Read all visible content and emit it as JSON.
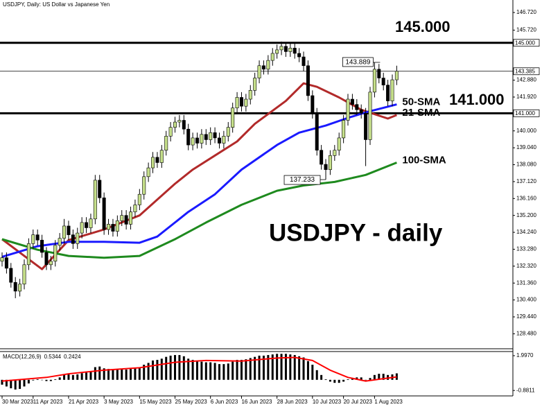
{
  "chart_data": [
    {
      "type": "candlestick",
      "title": "USDJPY, Daily: US Dollar vs Japanese Yen",
      "up_color": "#c5df8a",
      "down_color": "#000000",
      "open": [
        132.6,
        132.8,
        132.2,
        131.4,
        130.9,
        131.3,
        132.4,
        133.6,
        134.1,
        133.8,
        133.1,
        132.4,
        132.6,
        133.5,
        133.9,
        134.6,
        134.1,
        133.6,
        134.2,
        134.8,
        134.5,
        135.0,
        137.2,
        136.2,
        134.4,
        134.7,
        134.3,
        134.9,
        135.2,
        134.7,
        135.4,
        135.8,
        136.4,
        137.4,
        137.9,
        138.5,
        138.2,
        138.9,
        139.7,
        140.2,
        140.5,
        140.6,
        140.1,
        139.2,
        139.6,
        139.3,
        139.8,
        139.5,
        139.9,
        139.6,
        139.3,
        139.7,
        140.2,
        141.3,
        141.9,
        141.4,
        141.8,
        142.3,
        143.0,
        143.7,
        143.5,
        144.0,
        144.4,
        144.6,
        144.8,
        144.5,
        144.7,
        144.4,
        144.2,
        143.7,
        142.0,
        141.0,
        138.9,
        138.1,
        137.8,
        138.6,
        138.9,
        139.6,
        140.6,
        141.8,
        141.5,
        141.2,
        141.0,
        139.5,
        142.2,
        143.5,
        143.0,
        142.6,
        141.7,
        142.9
      ],
      "high": [
        133.1,
        133.1,
        132.5,
        131.7,
        131.6,
        132.7,
        133.9,
        134.4,
        134.4,
        134.1,
        133.4,
        132.9,
        133.8,
        134.2,
        135.0,
        134.9,
        134.4,
        134.5,
        135.1,
        135.1,
        135.3,
        137.5,
        137.5,
        136.5,
        135.0,
        135.0,
        135.2,
        135.5,
        135.5,
        135.7,
        136.1,
        136.7,
        137.7,
        138.2,
        138.8,
        138.8,
        139.2,
        140.0,
        140.5,
        140.8,
        140.9,
        140.9,
        140.4,
        139.9,
        139.9,
        140.1,
        140.1,
        140.2,
        140.2,
        139.9,
        140.0,
        140.5,
        141.6,
        142.2,
        142.2,
        142.1,
        142.6,
        143.3,
        144.0,
        144.0,
        144.3,
        144.7,
        144.9,
        145.07,
        145.0,
        145.0,
        145.0,
        144.7,
        144.5,
        144.0,
        142.3,
        141.3,
        139.2,
        138.4,
        138.9,
        139.2,
        139.9,
        140.9,
        142.1,
        142.1,
        141.8,
        141.5,
        141.3,
        142.5,
        143.889,
        143.8,
        143.3,
        142.9,
        143.2,
        143.7
      ],
      "low": [
        132.3,
        131.9,
        131.1,
        130.5,
        130.6,
        131.0,
        132.1,
        133.3,
        133.5,
        132.8,
        132.1,
        132.1,
        132.3,
        133.2,
        133.6,
        133.8,
        133.3,
        133.3,
        133.9,
        134.2,
        134.2,
        134.7,
        135.9,
        134.1,
        134.1,
        134.0,
        134.0,
        134.6,
        134.4,
        134.4,
        135.1,
        135.5,
        136.1,
        137.1,
        137.6,
        137.9,
        137.9,
        138.6,
        139.4,
        139.9,
        140.2,
        139.8,
        138.9,
        138.9,
        139.0,
        139.0,
        139.2,
        139.2,
        139.3,
        139.0,
        139.0,
        139.4,
        139.9,
        141.0,
        141.1,
        141.1,
        141.5,
        142.0,
        142.7,
        143.2,
        143.2,
        143.7,
        144.1,
        144.3,
        144.2,
        144.2,
        144.1,
        143.9,
        143.4,
        141.7,
        140.7,
        138.6,
        137.8,
        137.233,
        137.5,
        138.3,
        138.6,
        139.3,
        140.3,
        141.2,
        140.9,
        140.7,
        138.0,
        139.2,
        141.9,
        142.7,
        142.3,
        141.4,
        141.4,
        142.6
      ],
      "close": [
        132.8,
        132.2,
        131.4,
        130.9,
        131.3,
        132.4,
        133.6,
        134.1,
        133.8,
        133.1,
        132.4,
        132.6,
        133.5,
        133.9,
        134.6,
        134.1,
        133.6,
        134.2,
        134.8,
        134.5,
        135.0,
        137.2,
        136.2,
        134.4,
        134.7,
        134.3,
        134.9,
        135.2,
        134.7,
        135.4,
        135.8,
        136.4,
        137.4,
        137.9,
        138.5,
        138.2,
        138.9,
        139.7,
        140.2,
        140.5,
        140.6,
        140.1,
        139.2,
        139.6,
        139.3,
        139.8,
        139.5,
        139.9,
        139.6,
        139.3,
        139.7,
        140.2,
        141.3,
        141.9,
        141.4,
        141.8,
        142.3,
        143.0,
        143.7,
        143.5,
        144.0,
        144.4,
        144.6,
        144.8,
        144.5,
        144.7,
        144.4,
        144.2,
        143.7,
        142.0,
        141.0,
        138.9,
        138.1,
        137.8,
        138.6,
        138.9,
        139.6,
        140.6,
        141.8,
        141.5,
        141.2,
        141.0,
        139.5,
        142.2,
        143.5,
        143.0,
        142.6,
        141.7,
        142.9,
        143.385
      ],
      "xlim": [
        -0.47,
        115.2
      ],
      "xticks": [
        {
          "value": 0,
          "label": "30 Mar 2023"
        },
        {
          "value": 7,
          "label": "11 Apr 2023"
        },
        {
          "value": 15,
          "label": "21 Apr 2023"
        },
        {
          "value": 23,
          "label": "3 May 2023"
        },
        {
          "value": 31,
          "label": "15 May 2023"
        },
        {
          "value": 39,
          "label": "25 May 2023"
        },
        {
          "value": 47,
          "label": "6 Jun 2023"
        },
        {
          "value": 54,
          "label": "16 Jun 2023"
        },
        {
          "value": 62,
          "label": "28 Jun 2023"
        },
        {
          "value": 70,
          "label": "10 Jul 2023"
        },
        {
          "value": 77,
          "label": "20 Jul 2023"
        },
        {
          "value": 84,
          "label": "1 Aug 2023"
        }
      ],
      "ylim": [
        127.63,
        147.43
      ],
      "yticks": [
        {
          "value": 146.72,
          "label": "146.720"
        },
        {
          "value": 145.72,
          "label": "145.720"
        },
        {
          "value": 142.88,
          "label": "142.880"
        },
        {
          "value": 141.92,
          "label": "141.920"
        },
        {
          "value": 140.0,
          "label": "140.000"
        },
        {
          "value": 139.04,
          "label": "139.040"
        },
        {
          "value": 138.08,
          "label": "138.080"
        },
        {
          "value": 137.12,
          "label": "137.120"
        },
        {
          "value": 136.16,
          "label": "136.160"
        },
        {
          "value": 135.2,
          "label": "135.200"
        },
        {
          "value": 134.24,
          "label": "134.240"
        },
        {
          "value": 133.28,
          "label": "133.280"
        },
        {
          "value": 132.32,
          "label": "132.320"
        },
        {
          "value": 131.36,
          "label": "131.360"
        },
        {
          "value": 130.4,
          "label": "130.400"
        },
        {
          "value": 129.44,
          "label": "129.440"
        },
        {
          "value": 128.48,
          "label": "128.480"
        }
      ],
      "levels": [
        {
          "value": 145,
          "label": "145.000"
        },
        {
          "value": 141,
          "label": "141.000"
        }
      ],
      "series": [
        {
          "name": "21-SMA",
          "color": "#b22a2a",
          "x": [
            0,
            5,
            9,
            15,
            23,
            31,
            39,
            43,
            48,
            53,
            57,
            64,
            68,
            71,
            76,
            81,
            87,
            89
          ],
          "values": [
            133.85,
            132.9,
            132.15,
            133.8,
            134.4,
            135.2,
            137.0,
            137.8,
            138.6,
            139.4,
            140.4,
            141.7,
            142.7,
            142.5,
            141.9,
            141.2,
            140.7,
            140.9
          ]
        },
        {
          "name": "50-SMA",
          "color": "#1a1aff",
          "x": [
            0,
            8,
            15,
            23,
            31,
            35,
            42,
            48,
            54,
            62,
            67,
            73,
            78,
            82,
            89
          ],
          "values": [
            132.85,
            133.45,
            133.7,
            133.7,
            133.65,
            134.0,
            135.4,
            136.4,
            137.8,
            139.2,
            139.9,
            140.3,
            140.74,
            141.05,
            141.5
          ]
        },
        {
          "name": "100-SMA",
          "color": "#1e8a1e",
          "x": [
            0,
            8,
            15,
            23,
            31,
            39,
            46,
            54,
            62,
            68,
            75,
            82,
            89
          ],
          "values": [
            133.85,
            133.25,
            132.9,
            132.8,
            132.9,
            133.85,
            134.8,
            135.8,
            136.6,
            136.9,
            137.1,
            137.5,
            138.2
          ]
        }
      ],
      "annotations": [
        "USDJPY - daily"
      ]
    },
    {
      "type": "macd",
      "title": "MACD(12,26,9)",
      "color": "#000000",
      "values": [
        -0.4,
        -0.55,
        -0.7,
        -0.8,
        -0.75,
        -0.55,
        -0.3,
        -0.05,
        0.05,
        0.0,
        -0.1,
        -0.1,
        0.05,
        0.2,
        0.4,
        0.45,
        0.4,
        0.45,
        0.55,
        0.6,
        0.7,
        1.05,
        1.1,
        0.95,
        0.9,
        0.85,
        0.85,
        0.9,
        0.85,
        0.9,
        0.95,
        1.05,
        1.25,
        1.4,
        1.6,
        1.65,
        1.75,
        1.9,
        2.0,
        2.05,
        2.05,
        1.95,
        1.75,
        1.65,
        1.55,
        1.5,
        1.45,
        1.45,
        1.4,
        1.3,
        1.3,
        1.35,
        1.5,
        1.65,
        1.65,
        1.7,
        1.8,
        1.9,
        2.0,
        2.0,
        2.05,
        2.1,
        2.15,
        2.15,
        2.15,
        2.1,
        2.05,
        1.95,
        1.85,
        1.55,
        1.25,
        0.8,
        0.4,
        0.05,
        -0.15,
        -0.25,
        -0.25,
        -0.15,
        0.05,
        0.15,
        0.2,
        0.2,
        0.0,
        0.15,
        0.4,
        0.5,
        0.5,
        0.4,
        0.45,
        0.5344
      ],
      "series": [
        {
          "color": "#ff0000",
          "x": [
            0,
            10,
            15,
            23,
            31,
            39,
            46,
            54,
            62,
            66,
            70,
            74,
            78,
            82,
            86,
            89
          ],
          "values": [
            -0.1,
            0.2,
            0.5,
            0.8,
            1.0,
            1.45,
            1.6,
            1.55,
            1.8,
            1.85,
            1.6,
            0.8,
            0.2,
            -0.1,
            0.1,
            0.2424
          ]
        }
      ],
      "xlim": [
        -0.47,
        115.2
      ],
      "ylim": [
        -1.33,
        2.34
      ],
      "yticks": [
        {
          "value": 1.997,
          "label": "1.9970"
        },
        {
          "value": -0.8811,
          "label": "-0.8811"
        }
      ]
    }
  ]
}
